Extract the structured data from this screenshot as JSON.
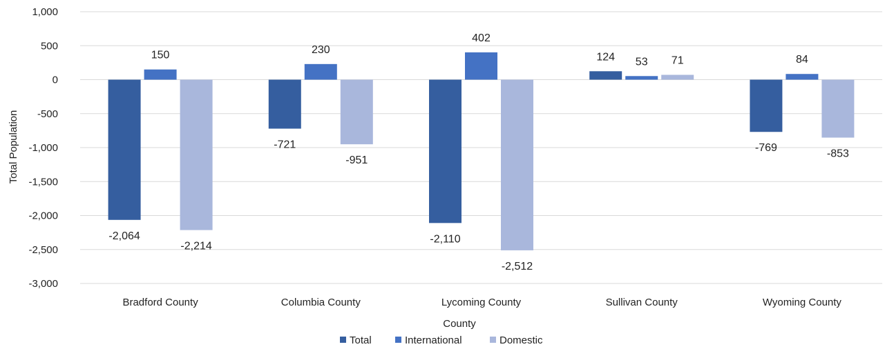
{
  "chart_data": {
    "type": "bar",
    "title": "",
    "xlabel": "County",
    "ylabel": "Total Population",
    "ylim": [
      -3000,
      1000
    ],
    "yticks": [
      1000,
      500,
      0,
      -500,
      -1000,
      -1500,
      -2000,
      -2500,
      -3000
    ],
    "ytick_labels": [
      "1,000",
      "500",
      "0",
      "-500",
      "-1,000",
      "-1,500",
      "-2,000",
      "-2,500",
      "-3,000"
    ],
    "categories": [
      "Bradford County",
      "Columbia County",
      "Lycoming County",
      "Sullivan County",
      "Wyoming County"
    ],
    "series": [
      {
        "name": "Total",
        "color": "#355e9f",
        "values": [
          -2064,
          -721,
          -2110,
          124,
          -769
        ],
        "labels": [
          "-2,064",
          "-721",
          "-2,110",
          "124",
          "-769"
        ]
      },
      {
        "name": "International",
        "color": "#4472c4",
        "values": [
          150,
          230,
          402,
          53,
          84
        ],
        "labels": [
          "150",
          "230",
          "402",
          "53",
          "84"
        ]
      },
      {
        "name": "Domestic",
        "color": "#a9b7dc",
        "values": [
          -2214,
          -951,
          -2512,
          71,
          -853
        ],
        "labels": [
          "-2,214",
          "-951",
          "-2,512",
          "71",
          "-853"
        ]
      }
    ],
    "grid": true,
    "legend_position": "bottom"
  }
}
